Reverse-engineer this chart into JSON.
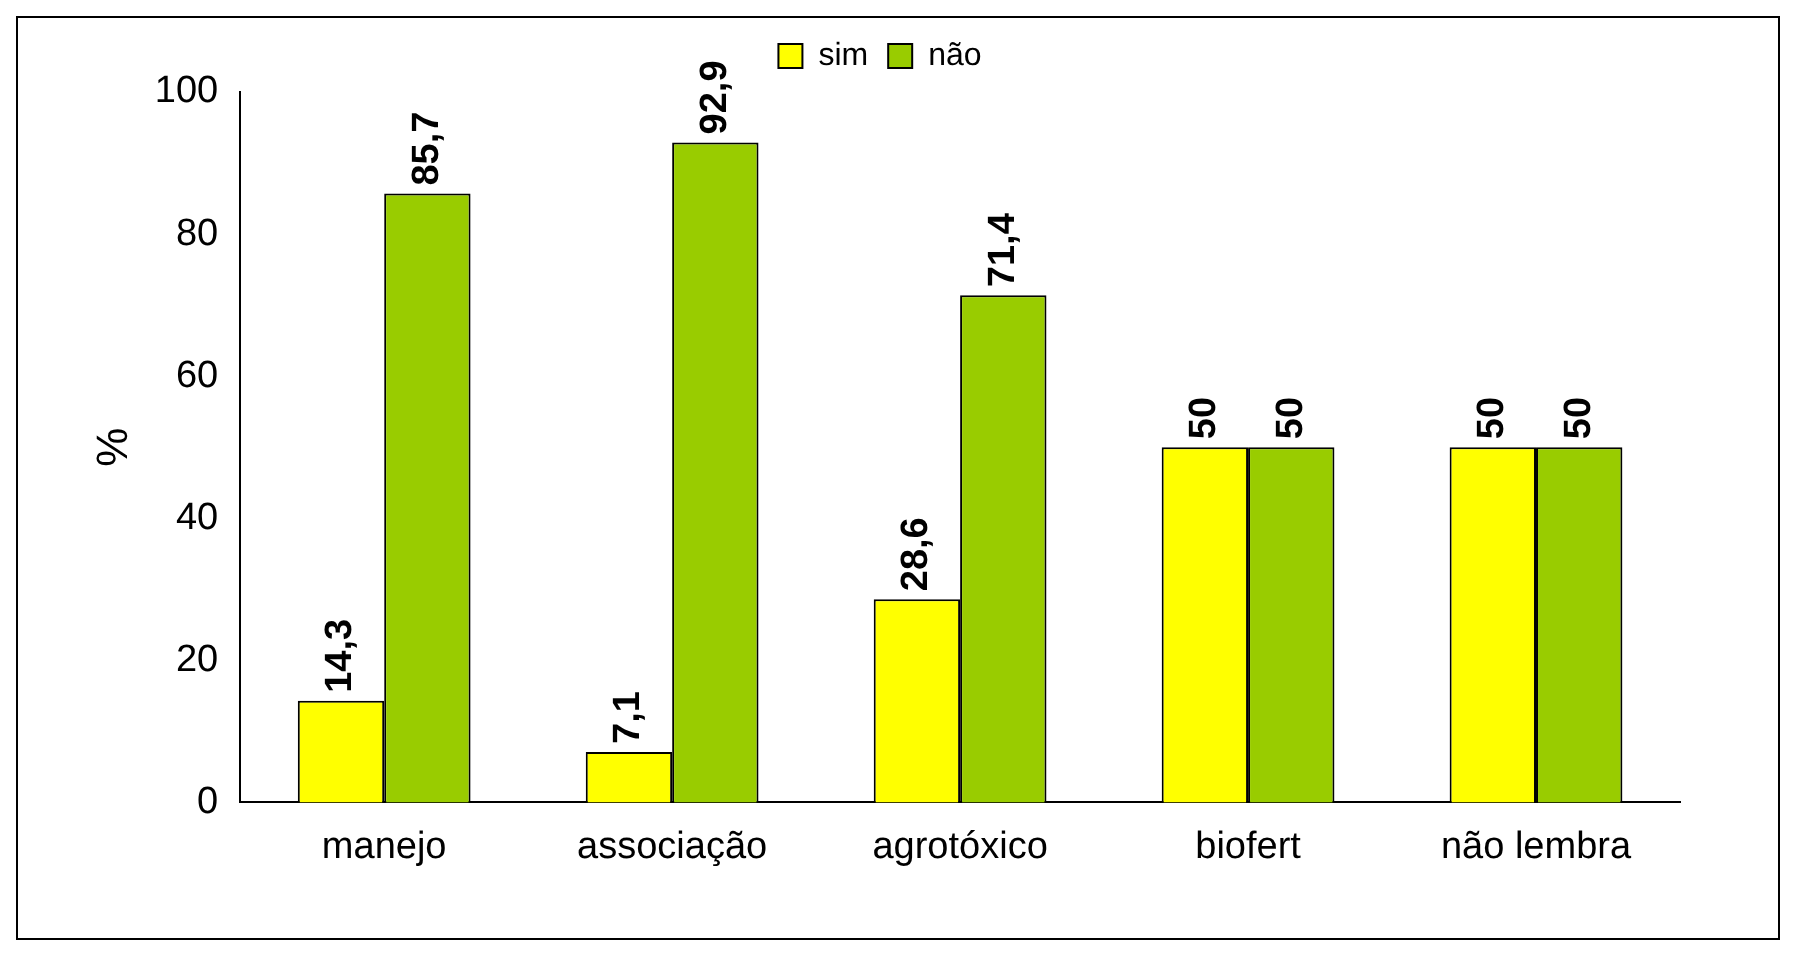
{
  "chart_data": {
    "type": "bar",
    "ylabel": "%",
    "categories": [
      "manejo",
      "associação",
      "agrotóxico",
      "biofert",
      "não lembra"
    ],
    "series": [
      {
        "name": "sim",
        "color": "#ffff00",
        "values": [
          14.3,
          7.1,
          28.6,
          50,
          50
        ],
        "value_labels": [
          "14,3",
          "7,1",
          "28,6",
          "50",
          "50"
        ]
      },
      {
        "name": "não",
        "color": "#99cc00",
        "values": [
          85.7,
          92.9,
          71.4,
          50,
          50
        ],
        "value_labels": [
          "85,7",
          "92,9",
          "71,4",
          "50",
          "50"
        ]
      }
    ],
    "ylim": [
      0,
      100
    ],
    "yticks": [
      0,
      20,
      40,
      60,
      80,
      100
    ],
    "grid": false,
    "legend": "top"
  }
}
